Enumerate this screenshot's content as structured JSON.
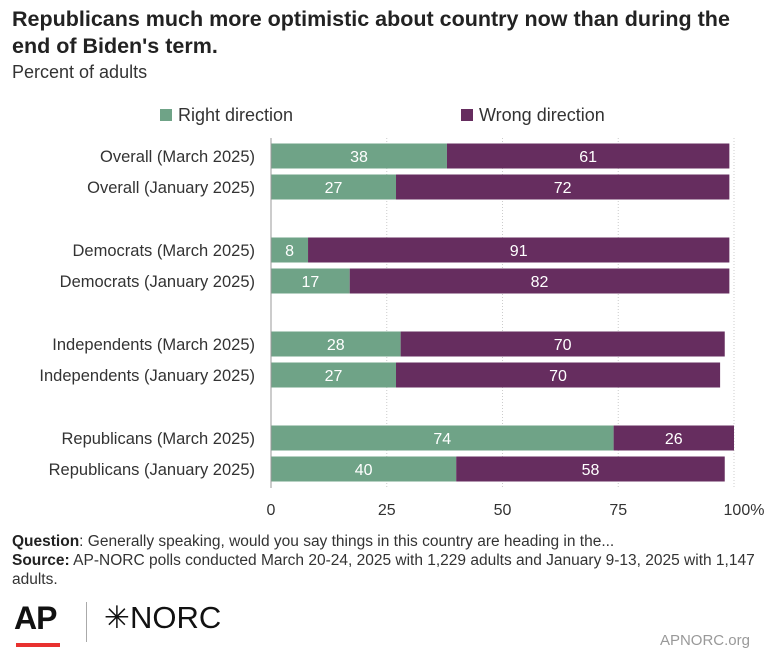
{
  "title": "Republicans much more optimistic about country now than during the end of Biden's term.",
  "subtitle": "Percent of adults",
  "colors": {
    "right": "#6fa387",
    "wrong": "#662d5f",
    "text": "#333333",
    "grid": "#cccccc"
  },
  "chart_data": {
    "type": "bar",
    "orientation": "horizontal",
    "stacked": true,
    "categories": [
      "Overall (March 2025)",
      "Overall (January 2025)",
      "Democrats (March 2025)",
      "Democrats (January 2025)",
      "Independents (March 2025)",
      "Independents (January 2025)",
      "Republicans (March 2025)",
      "Republicans (January 2025)"
    ],
    "series": [
      {
        "name": "Right direction",
        "values": [
          38,
          27,
          8,
          17,
          28,
          27,
          74,
          40
        ]
      },
      {
        "name": "Wrong direction",
        "values": [
          61,
          72,
          91,
          82,
          70,
          70,
          26,
          58
        ]
      }
    ],
    "xlim": [
      0,
      100
    ],
    "xticks": [
      "0",
      "25",
      "50",
      "75",
      "100%"
    ],
    "legend_position": "top"
  },
  "footer": {
    "question_label": "Question",
    "question_text": ": Generally speaking, would you say things in this country are heading in the...",
    "source_label": "Source:",
    "source_text": " AP-NORC polls conducted March 20-24, 2025 with 1,229 adults and January 9-13, 2025 with 1,147 adults."
  },
  "logos": {
    "ap": "AP",
    "norc": "✳NORC",
    "site": "APNORC.org"
  }
}
